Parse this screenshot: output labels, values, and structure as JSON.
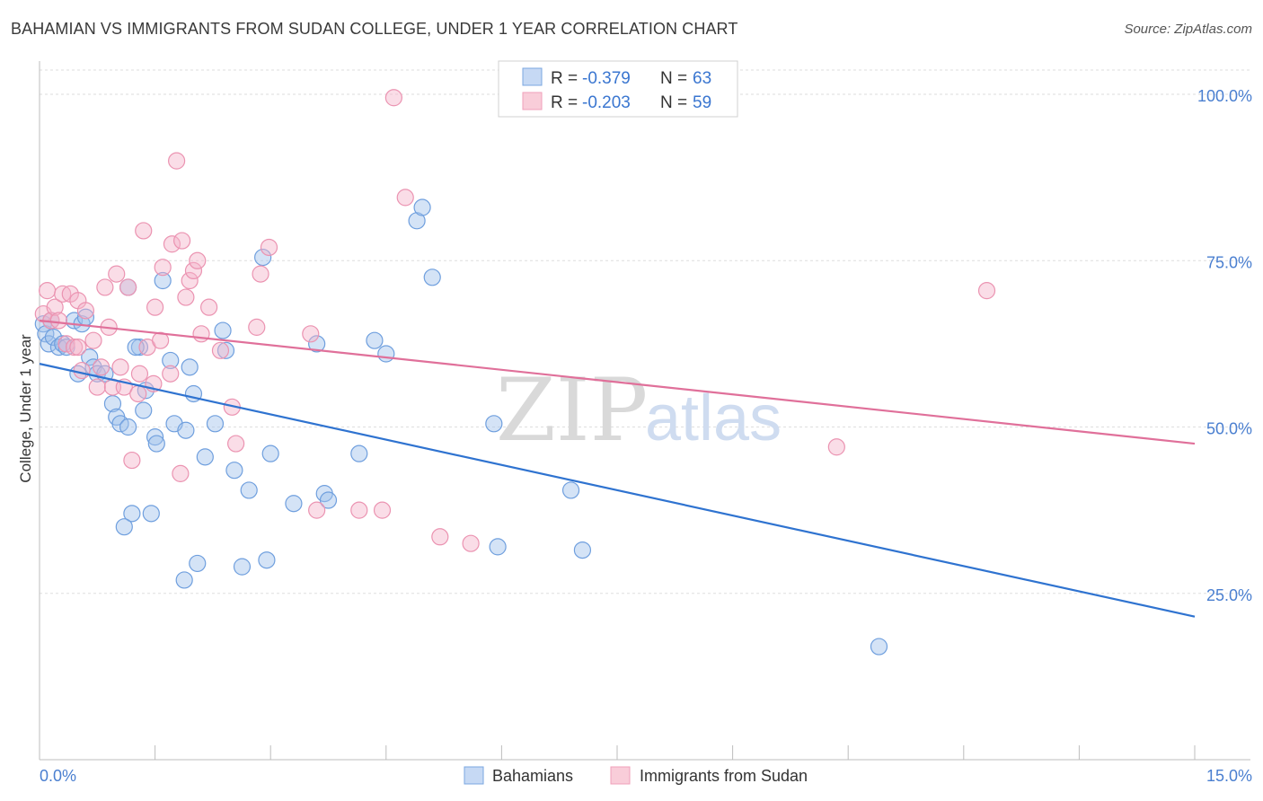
{
  "title": "BAHAMIAN VS IMMIGRANTS FROM SUDAN COLLEGE, UNDER 1 YEAR CORRELATION CHART",
  "source": "Source: ZipAtlas.com",
  "colors": {
    "blue": "#7ba7e0",
    "blue_line": "#2f73d0",
    "pink": "#f0a0ba",
    "pink_line": "#e0709a",
    "tick": "#4a7fd0"
  },
  "chart_data": {
    "type": "scatter",
    "xlabel": "",
    "ylabel": "College, Under 1 year",
    "xlim": [
      0,
      15
    ],
    "ylim": [
      0,
      105
    ],
    "x_tick_labels": [
      "0.0%",
      "15.0%"
    ],
    "y_ticks": [
      25,
      50,
      75,
      100
    ],
    "y_tick_labels": [
      "25.0%",
      "50.0%",
      "75.0%",
      "100.0%"
    ],
    "watermark": {
      "zip": "ZIP",
      "atlas": "atlas"
    },
    "legend": [
      {
        "r_label": "R =",
        "r_value": "-0.379",
        "n_label": "N =",
        "n_value": "63"
      },
      {
        "r_label": "R =",
        "r_value": "-0.203",
        "n_label": "N =",
        "n_value": "59"
      }
    ],
    "series": [
      {
        "name": "Bahamians",
        "trend": [
          [
            0,
            59.5
          ],
          [
            15,
            21.5
          ]
        ],
        "points": [
          [
            0.05,
            65.5
          ],
          [
            0.08,
            64
          ],
          [
            0.12,
            62.5
          ],
          [
            0.15,
            66
          ],
          [
            0.18,
            63.5
          ],
          [
            0.25,
            62
          ],
          [
            0.3,
            62.5
          ],
          [
            0.35,
            62
          ],
          [
            0.45,
            66
          ],
          [
            0.5,
            58
          ],
          [
            0.55,
            65.5
          ],
          [
            0.6,
            66.5
          ],
          [
            0.65,
            60.5
          ],
          [
            0.7,
            59
          ],
          [
            0.75,
            58
          ],
          [
            0.85,
            58
          ],
          [
            0.95,
            53.5
          ],
          [
            1.0,
            51.5
          ],
          [
            1.05,
            50.5
          ],
          [
            1.15,
            50
          ],
          [
            1.2,
            37
          ],
          [
            1.3,
            62
          ],
          [
            1.35,
            52.5
          ],
          [
            1.38,
            55.5
          ],
          [
            1.45,
            37
          ],
          [
            1.5,
            48.5
          ],
          [
            1.52,
            47.5
          ],
          [
            1.6,
            72
          ],
          [
            1.7,
            60
          ],
          [
            1.75,
            50.5
          ],
          [
            1.88,
            27
          ],
          [
            1.9,
            49.5
          ],
          [
            1.95,
            59
          ],
          [
            2.0,
            55
          ],
          [
            2.05,
            29.5
          ],
          [
            2.15,
            45.5
          ],
          [
            2.28,
            50.5
          ],
          [
            2.38,
            64.5
          ],
          [
            2.42,
            61.5
          ],
          [
            2.53,
            43.5
          ],
          [
            2.63,
            29
          ],
          [
            2.72,
            40.5
          ],
          [
            2.9,
            75.5
          ],
          [
            2.95,
            30
          ],
          [
            3.0,
            46
          ],
          [
            3.3,
            38.5
          ],
          [
            3.6,
            62.5
          ],
          [
            3.7,
            40
          ],
          [
            3.75,
            39
          ],
          [
            4.15,
            46
          ],
          [
            4.35,
            63
          ],
          [
            4.5,
            61
          ],
          [
            4.9,
            81
          ],
          [
            4.97,
            83
          ],
          [
            5.1,
            72.5
          ],
          [
            5.9,
            50.5
          ],
          [
            5.95,
            32
          ],
          [
            1.1,
            35
          ],
          [
            1.15,
            71
          ],
          [
            1.25,
            62
          ],
          [
            6.9,
            40.5
          ],
          [
            7.05,
            31.5
          ],
          [
            10.9,
            17
          ]
        ]
      },
      {
        "name": "Immigrants from Sudan",
        "trend": [
          [
            0,
            66
          ],
          [
            15,
            47.5
          ]
        ],
        "points": [
          [
            0.05,
            67
          ],
          [
            0.1,
            70.5
          ],
          [
            0.15,
            66
          ],
          [
            0.2,
            68
          ],
          [
            0.25,
            66
          ],
          [
            0.3,
            70
          ],
          [
            0.35,
            62.5
          ],
          [
            0.4,
            70
          ],
          [
            0.45,
            62
          ],
          [
            0.5,
            69
          ],
          [
            0.55,
            58.5
          ],
          [
            0.6,
            67.5
          ],
          [
            0.7,
            63
          ],
          [
            0.75,
            56
          ],
          [
            0.8,
            59
          ],
          [
            0.85,
            71
          ],
          [
            0.9,
            65
          ],
          [
            0.95,
            56
          ],
          [
            1.0,
            73
          ],
          [
            1.05,
            59
          ],
          [
            1.1,
            56
          ],
          [
            1.15,
            71
          ],
          [
            1.2,
            45
          ],
          [
            1.28,
            55
          ],
          [
            1.3,
            58
          ],
          [
            1.35,
            79.5
          ],
          [
            1.4,
            62
          ],
          [
            1.48,
            56.5
          ],
          [
            1.5,
            68
          ],
          [
            1.57,
            63
          ],
          [
            1.6,
            74
          ],
          [
            1.7,
            58
          ],
          [
            1.72,
            77.5
          ],
          [
            1.78,
            90
          ],
          [
            1.83,
            43
          ],
          [
            1.85,
            78
          ],
          [
            1.9,
            69.5
          ],
          [
            1.95,
            72
          ],
          [
            2.0,
            73.5
          ],
          [
            2.05,
            75
          ],
          [
            2.1,
            64
          ],
          [
            2.2,
            68
          ],
          [
            2.35,
            61.5
          ],
          [
            2.5,
            53
          ],
          [
            2.55,
            47.5
          ],
          [
            2.82,
            65
          ],
          [
            2.87,
            73
          ],
          [
            2.98,
            77
          ],
          [
            3.52,
            64
          ],
          [
            3.6,
            37.5
          ],
          [
            4.15,
            37.5
          ],
          [
            4.45,
            37.5
          ],
          [
            4.6,
            99.5
          ],
          [
            4.75,
            84.5
          ],
          [
            5.2,
            33.5
          ],
          [
            5.6,
            32.5
          ],
          [
            10.35,
            47
          ],
          [
            12.3,
            70.5
          ],
          [
            0.5,
            62
          ]
        ]
      }
    ]
  }
}
